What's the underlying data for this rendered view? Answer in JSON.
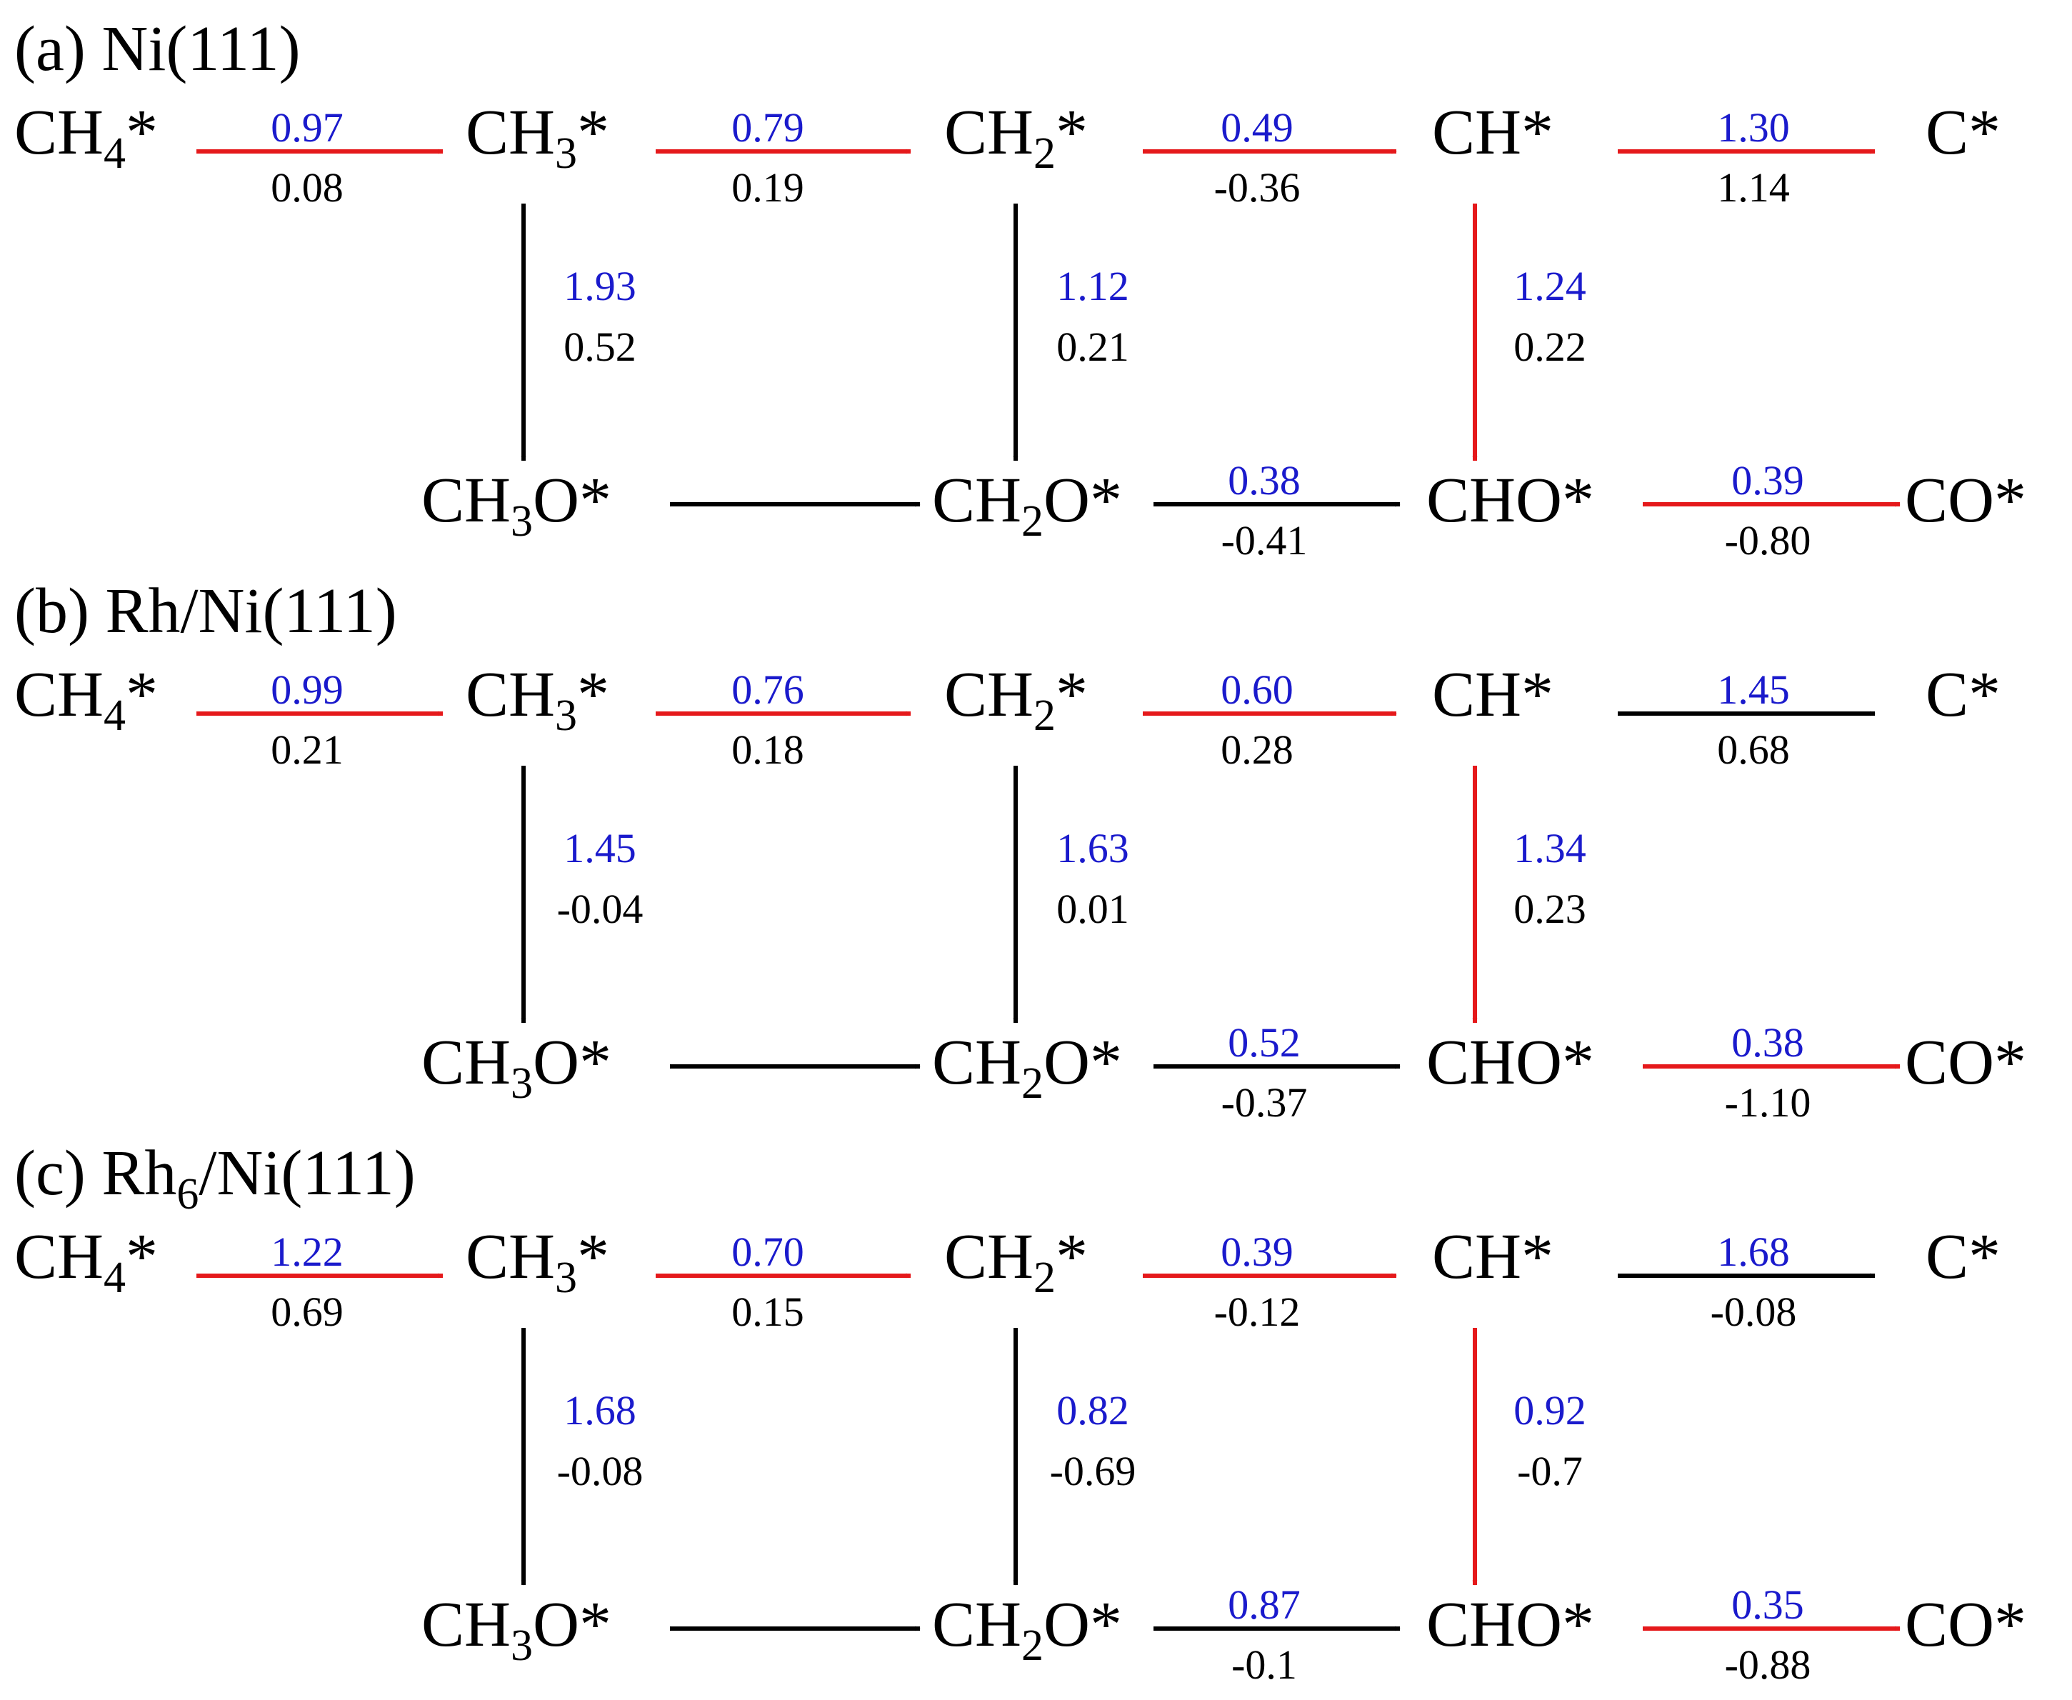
{
  "colors": {
    "favored": "#e5191b",
    "other": "#000000",
    "barrier_text": "#1a1acc",
    "energy_text": "#000000"
  },
  "species": {
    "CH4": {
      "base": "CH",
      "sub": "4",
      "suffix": "*"
    },
    "CH3": {
      "base": "CH",
      "sub": "3",
      "suffix": "*"
    },
    "CH2": {
      "base": "CH",
      "sub": "2",
      "suffix": "*"
    },
    "CH": {
      "base": "CH*",
      "sub": "",
      "suffix": ""
    },
    "C": {
      "base": "C*",
      "sub": "",
      "suffix": ""
    },
    "CH3O": {
      "base": "CH",
      "sub": "3",
      "suffix": "O*"
    },
    "CH2O": {
      "base": "CH",
      "sub": "2",
      "suffix": "O*"
    },
    "CHO": {
      "base": "CHO*",
      "sub": "",
      "suffix": ""
    },
    "CO": {
      "base": "CO*",
      "sub": "",
      "suffix": ""
    }
  },
  "panels": [
    {
      "id": "a",
      "title": {
        "prefix": "(a) Ni(111)",
        "sub": "",
        "suffix": ""
      },
      "steps": {
        "ch4_ch3": {
          "barrier": "0.97",
          "energy": "0.08",
          "favored": true
        },
        "ch3_ch2": {
          "barrier": "0.79",
          "energy": "0.19",
          "favored": true
        },
        "ch2_ch": {
          "barrier": "0.49",
          "energy": "-0.36",
          "favored": true
        },
        "ch_c": {
          "barrier": "1.30",
          "energy": "1.14",
          "favored": true
        },
        "ch3_ch3o": {
          "barrier": "1.93",
          "energy": "0.52",
          "favored": false
        },
        "ch2_ch2o": {
          "barrier": "1.12",
          "energy": "0.21",
          "favored": false
        },
        "ch_cho": {
          "barrier": "1.24",
          "energy": "0.22",
          "favored": true
        },
        "ch3o_ch2o": {
          "barrier": "",
          "energy": "",
          "favored": false
        },
        "ch2o_cho": {
          "barrier": "0.38",
          "energy": "-0.41",
          "favored": false
        },
        "cho_co": {
          "barrier": "0.39",
          "energy": "-0.80",
          "favored": true
        }
      }
    },
    {
      "id": "b",
      "title": {
        "prefix": "(b) Rh/Ni(111)",
        "sub": "",
        "suffix": ""
      },
      "steps": {
        "ch4_ch3": {
          "barrier": "0.99",
          "energy": "0.21",
          "favored": true
        },
        "ch3_ch2": {
          "barrier": "0.76",
          "energy": "0.18",
          "favored": true
        },
        "ch2_ch": {
          "barrier": "0.60",
          "energy": "0.28",
          "favored": true
        },
        "ch_c": {
          "barrier": "1.45",
          "energy": "0.68",
          "favored": false
        },
        "ch3_ch3o": {
          "barrier": "1.45",
          "energy": "-0.04",
          "favored": false
        },
        "ch2_ch2o": {
          "barrier": "1.63",
          "energy": "0.01",
          "favored": false
        },
        "ch_cho": {
          "barrier": "1.34",
          "energy": "0.23",
          "favored": true
        },
        "ch3o_ch2o": {
          "barrier": "",
          "energy": "",
          "favored": false
        },
        "ch2o_cho": {
          "barrier": "0.52",
          "energy": "-0.37",
          "favored": false
        },
        "cho_co": {
          "barrier": "0.38",
          "energy": "-1.10",
          "favored": true
        }
      }
    },
    {
      "id": "c",
      "title": {
        "prefix": "(c) Rh",
        "sub": "6",
        "suffix": "/Ni(111)"
      },
      "steps": {
        "ch4_ch3": {
          "barrier": "1.22",
          "energy": "0.69",
          "favored": true
        },
        "ch3_ch2": {
          "barrier": "0.70",
          "energy": "0.15",
          "favored": true
        },
        "ch2_ch": {
          "barrier": "0.39",
          "energy": "-0.12",
          "favored": true
        },
        "ch_c": {
          "barrier": "1.68",
          "energy": "-0.08",
          "favored": false
        },
        "ch3_ch3o": {
          "barrier": "1.68",
          "energy": "-0.08",
          "favored": false
        },
        "ch2_ch2o": {
          "barrier": "0.82",
          "energy": "-0.69",
          "favored": false
        },
        "ch_cho": {
          "barrier": "0.92",
          "energy": "-0.7",
          "favored": true
        },
        "ch3o_ch2o": {
          "barrier": "",
          "energy": "",
          "favored": false
        },
        "ch2o_cho": {
          "barrier": "0.87",
          "energy": "-0.1",
          "favored": false
        },
        "cho_co": {
          "barrier": "0.35",
          "energy": "-0.88",
          "favored": true
        }
      }
    }
  ]
}
